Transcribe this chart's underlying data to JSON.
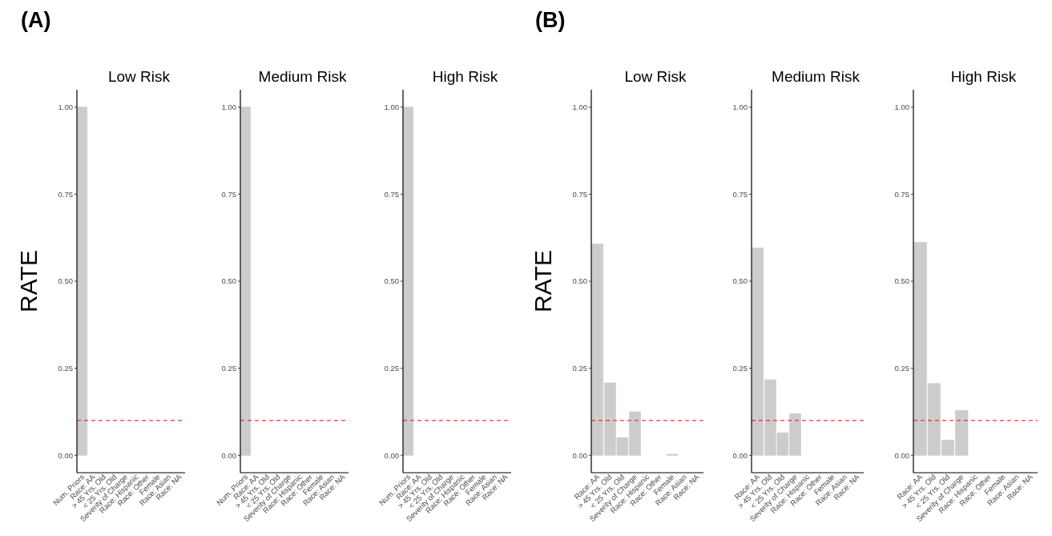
{
  "chart_data": [
    {
      "type": "bar",
      "title": "Low Risk",
      "ylabel": "RATE",
      "annotations": [
        "(A)"
      ],
      "categories": [
        "Num. Priors",
        "Race: AA",
        "> 45 Yrs. Old",
        "< 25 Yrs. Old",
        "Severity of Charge",
        "Race: Hispanic",
        "Race: Other",
        "Female",
        "Race: Asian",
        "Race: NA"
      ],
      "values": [
        1.0,
        0,
        0,
        0,
        0,
        0,
        0,
        0,
        0,
        0
      ],
      "color": "#cccccc",
      "ylim": [
        -0.05,
        1.05
      ],
      "yticks": [
        {
          "value": 0,
          "label": "0.00"
        },
        {
          "value": 0.25,
          "label": "0.25"
        },
        {
          "value": 0.5,
          "label": "0.50"
        },
        {
          "value": 0.75,
          "label": "0.75"
        },
        {
          "value": 1,
          "label": "1.00"
        }
      ],
      "ref_lines": [
        {
          "axis": "y",
          "value": 0.1,
          "color": "#ff0000",
          "line_style": "dashed"
        }
      ]
    },
    {
      "type": "bar",
      "title": "Medium Risk",
      "categories": [
        "Num. Priors",
        "Race: AA",
        "> 45 Yrs. Old",
        "< 25 Yrs. Old",
        "Severity of Charge",
        "Race: Hispanic",
        "Race: Other",
        "Female",
        "Race: Asian",
        "Race: NA"
      ],
      "values": [
        1.0,
        0,
        0,
        0,
        0,
        0,
        0,
        0,
        0,
        0
      ],
      "color": "#cccccc",
      "ylim": [
        -0.05,
        1.05
      ],
      "yticks": [
        {
          "value": 0,
          "label": "0.00"
        },
        {
          "value": 0.25,
          "label": "0.25"
        },
        {
          "value": 0.5,
          "label": "0.50"
        },
        {
          "value": 0.75,
          "label": "0.75"
        },
        {
          "value": 1,
          "label": "1.00"
        }
      ],
      "ref_lines": [
        {
          "axis": "y",
          "value": 0.1,
          "color": "#ff0000",
          "line_style": "dashed"
        }
      ]
    },
    {
      "type": "bar",
      "title": "High Risk",
      "categories": [
        "Num. Priors",
        "Race: AA",
        "> 45 Yrs. Old",
        "< 25 Yrs. Old",
        "Severity of Charge",
        "Race: Hispanic",
        "Race: Other",
        "Female",
        "Race: Asian",
        "Race: NA"
      ],
      "values": [
        1.0,
        0,
        0,
        0,
        0,
        0,
        0,
        0,
        0,
        0
      ],
      "color": "#cccccc",
      "ylim": [
        -0.05,
        1.05
      ],
      "yticks": [
        {
          "value": 0,
          "label": "0.00"
        },
        {
          "value": 0.25,
          "label": "0.25"
        },
        {
          "value": 0.5,
          "label": "0.50"
        },
        {
          "value": 0.75,
          "label": "0.75"
        },
        {
          "value": 1,
          "label": "1.00"
        }
      ],
      "ref_lines": [
        {
          "axis": "y",
          "value": 0.1,
          "color": "#ff0000",
          "line_style": "dashed"
        }
      ]
    },
    {
      "type": "bar",
      "title": "Low Risk",
      "ylabel": "RATE",
      "annotations": [
        "(B)"
      ],
      "categories": [
        "Race: AA",
        "> 45 Yrs. Old",
        "< 25 Yrs. Old",
        "Severity of Charge",
        "Race: Hispanic",
        "Race: Other",
        "Female",
        "Race: Asian",
        "Race: NA"
      ],
      "values": [
        0.607,
        0.208,
        0.051,
        0.125,
        0,
        0,
        0.003,
        0,
        0
      ],
      "color": "#cccccc",
      "ylim": [
        -0.05,
        1.05
      ],
      "yticks": [
        {
          "value": 0,
          "label": "0.00"
        },
        {
          "value": 0.25,
          "label": "0.25"
        },
        {
          "value": 0.5,
          "label": "0.50"
        },
        {
          "value": 0.75,
          "label": "0.75"
        },
        {
          "value": 1,
          "label": "1.00"
        }
      ],
      "ref_lines": [
        {
          "axis": "y",
          "value": 0.1,
          "color": "#ff0000",
          "line_style": "dashed"
        }
      ]
    },
    {
      "type": "bar",
      "title": "Medium Risk",
      "categories": [
        "Race: AA",
        "> 45 Yrs. Old",
        "< 25 Yrs. Old",
        "Severity of Charge",
        "Race: Hispanic",
        "Race: Other",
        "Female",
        "Race: Asian",
        "Race: NA"
      ],
      "values": [
        0.596,
        0.217,
        0.065,
        0.12,
        0,
        0,
        0,
        0,
        0
      ],
      "color": "#cccccc",
      "ylim": [
        -0.05,
        1.05
      ],
      "yticks": [
        {
          "value": 0,
          "label": "0.00"
        },
        {
          "value": 0.25,
          "label": "0.25"
        },
        {
          "value": 0.5,
          "label": "0.50"
        },
        {
          "value": 0.75,
          "label": "0.75"
        },
        {
          "value": 1,
          "label": "1.00"
        }
      ],
      "ref_lines": [
        {
          "axis": "y",
          "value": 0.1,
          "color": "#ff0000",
          "line_style": "dashed"
        }
      ]
    },
    {
      "type": "bar",
      "title": "High Risk",
      "categories": [
        "Race: AA",
        "> 45 Yrs. Old",
        "< 25 Yrs. Old",
        "Severity of Charge",
        "Race: Hispanic",
        "Race: Other",
        "Female",
        "Race: Asian",
        "Race: NA"
      ],
      "values": [
        0.612,
        0.206,
        0.044,
        0.129,
        0,
        0,
        0,
        0,
        0
      ],
      "color": "#cccccc",
      "ylim": [
        -0.05,
        1.05
      ],
      "yticks": [
        {
          "value": 0,
          "label": "0.00"
        },
        {
          "value": 0.25,
          "label": "0.25"
        },
        {
          "value": 0.5,
          "label": "0.50"
        },
        {
          "value": 0.75,
          "label": "0.75"
        },
        {
          "value": 1,
          "label": "1.00"
        }
      ],
      "ref_lines": [
        {
          "axis": "y",
          "value": 0.1,
          "color": "#ff0000",
          "line_style": "dashed"
        }
      ]
    }
  ]
}
